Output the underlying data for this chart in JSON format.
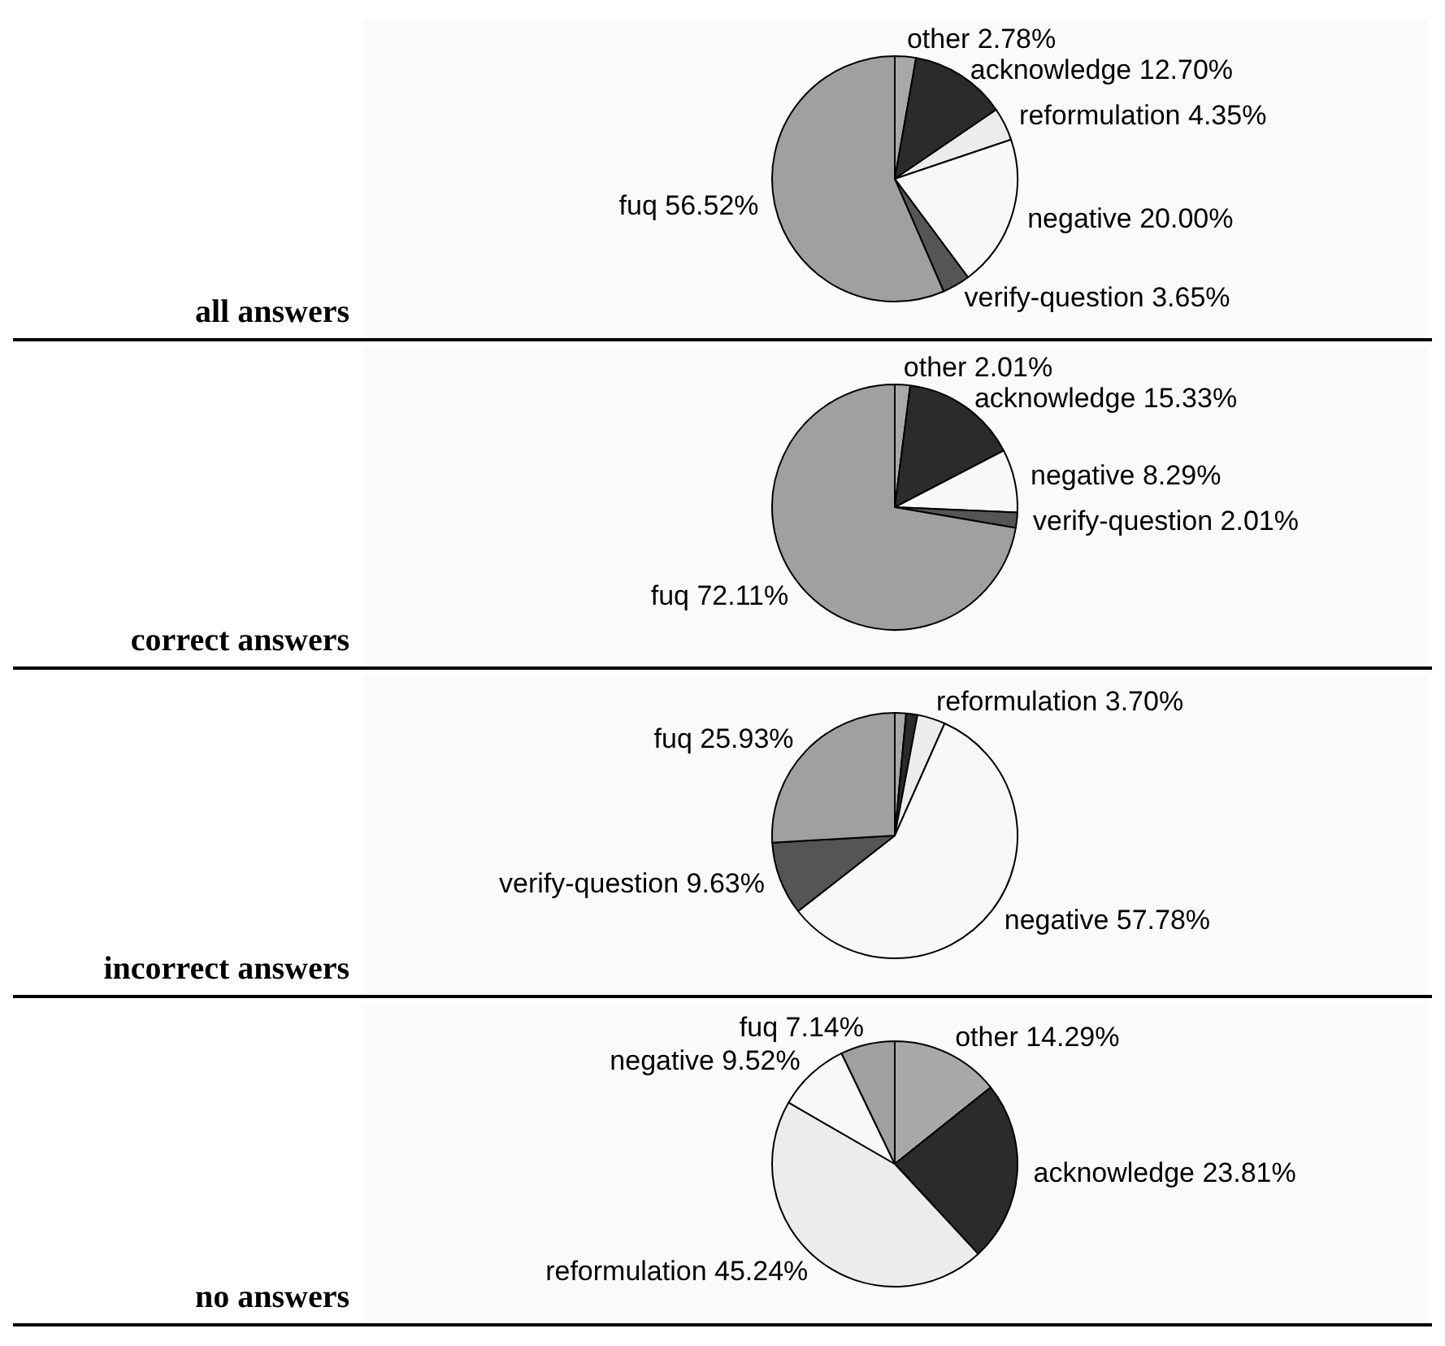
{
  "chart_data": [
    {
      "type": "pie",
      "title": "all answers",
      "categories": [
        "other",
        "acknowledge",
        "reformulation",
        "negative",
        "verify-question",
        "fuq"
      ],
      "values": [
        2.78,
        12.7,
        4.35,
        20.0,
        3.65,
        56.52
      ],
      "value_labels": [
        "2.78%",
        "12.70%",
        "4.35%",
        "20.00%",
        "3.65%",
        "56.52%"
      ],
      "colors": [
        "#a8a8a8",
        "#2b2b2b",
        "#ececec",
        "#f8f8f8",
        "#555555",
        "#a0a0a0"
      ]
    },
    {
      "type": "pie",
      "title": "correct answers",
      "categories": [
        "other",
        "acknowledge",
        null,
        "negative",
        "verify-question",
        "fuq"
      ],
      "values": [
        2.01,
        15.33,
        null,
        8.29,
        2.01,
        72.11
      ],
      "value_labels": [
        "2.01%",
        "15.33%",
        null,
        "8.29%",
        "2.01%",
        "72.11%"
      ],
      "colors": [
        "#a8a8a8",
        "#2b2b2b",
        "#ececec",
        "#f8f8f8",
        "#555555",
        "#a0a0a0"
      ]
    },
    {
      "type": "pie",
      "title": "incorrect answers",
      "categories": [
        null,
        null,
        "reformulation",
        "negative",
        "verify-question",
        "fuq"
      ],
      "values": [
        1.48,
        1.48,
        3.7,
        57.78,
        9.63,
        25.93
      ],
      "value_labels": [
        null,
        null,
        "3.70%",
        "57.78%",
        "9.63%",
        "25.93%"
      ],
      "colors": [
        "#a8a8a8",
        "#2b2b2b",
        "#ececec",
        "#f8f8f8",
        "#555555",
        "#a0a0a0"
      ]
    },
    {
      "type": "pie",
      "title": "no answers",
      "categories": [
        "other",
        "acknowledge",
        "reformulation",
        "negative",
        "fuq"
      ],
      "values": [
        14.29,
        23.81,
        45.24,
        9.52,
        7.14
      ],
      "value_labels": [
        "14.29%",
        "23.81%",
        "45.24%",
        "9.52%",
        "7.14%"
      ],
      "colors": [
        "#a8a8a8",
        "#2b2b2b",
        "#ececec",
        "#f8f8f8",
        "#a0a0a0"
      ]
    }
  ]
}
